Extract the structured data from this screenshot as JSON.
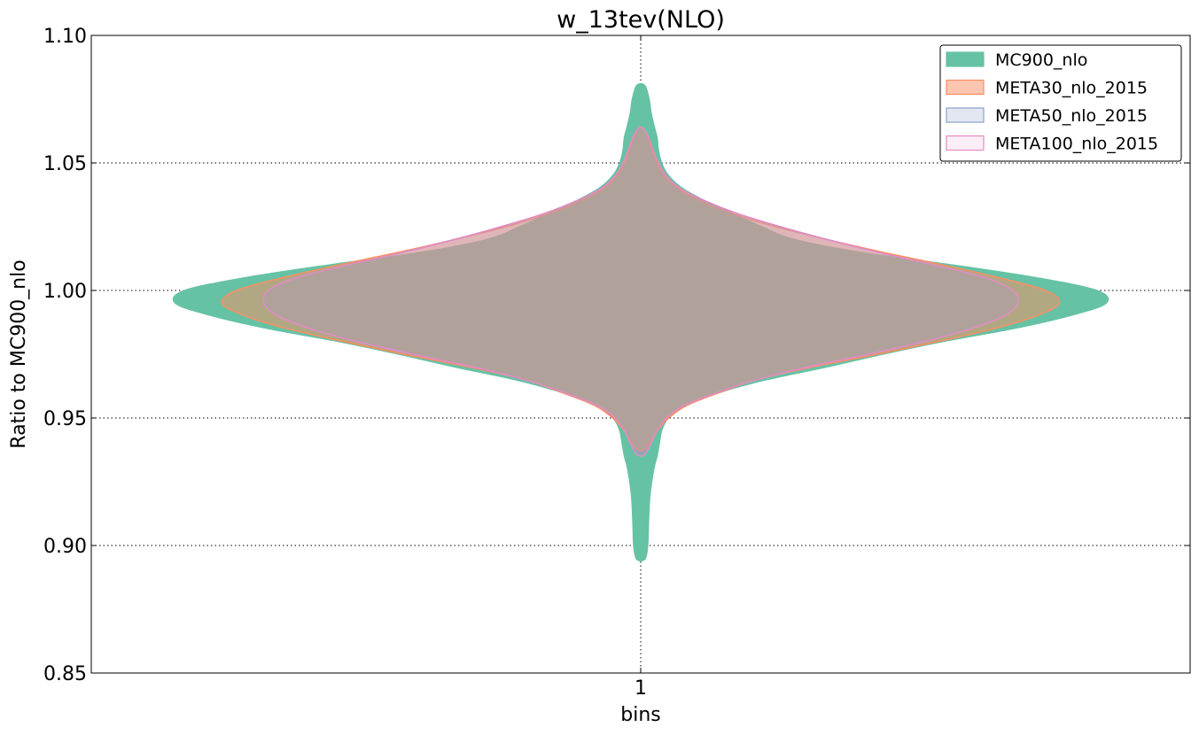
{
  "chart_data": {
    "type": "violin",
    "title": "w_13tev(NLO)",
    "xlabel": "bins",
    "ylabel": "Ratio to MC900_nlo",
    "categories": [
      "1"
    ],
    "ylim": [
      0.85,
      1.1
    ],
    "yticks": [
      "0.85",
      "0.90",
      "0.95",
      "1.00",
      "1.05",
      "1.10"
    ],
    "grid": true,
    "legend_position": "top-right",
    "series": [
      {
        "name": "MC900_nlo",
        "fill": "#66c2a5",
        "stroke": "#66c2a5",
        "fill_opacity": 1.0,
        "profile": [
          [
            0.895,
            0.01
          ],
          [
            0.9,
            0.015
          ],
          [
            0.91,
            0.017
          ],
          [
            0.92,
            0.02
          ],
          [
            0.93,
            0.028
          ],
          [
            0.935,
            0.035
          ],
          [
            0.94,
            0.04
          ],
          [
            0.945,
            0.045
          ],
          [
            0.95,
            0.06
          ],
          [
            0.955,
            0.1
          ],
          [
            0.96,
            0.17
          ],
          [
            0.965,
            0.27
          ],
          [
            0.97,
            0.4
          ],
          [
            0.975,
            0.52
          ],
          [
            0.98,
            0.65
          ],
          [
            0.985,
            0.8
          ],
          [
            0.99,
            0.92
          ],
          [
            0.995,
            1.0
          ],
          [
            1.0,
            0.98
          ],
          [
            1.005,
            0.85
          ],
          [
            1.01,
            0.67
          ],
          [
            1.015,
            0.47
          ],
          [
            1.02,
            0.33
          ],
          [
            1.025,
            0.26
          ],
          [
            1.03,
            0.2
          ],
          [
            1.035,
            0.14
          ],
          [
            1.04,
            0.09
          ],
          [
            1.045,
            0.06
          ],
          [
            1.05,
            0.045
          ],
          [
            1.055,
            0.038
          ],
          [
            1.06,
            0.035
          ],
          [
            1.065,
            0.028
          ],
          [
            1.07,
            0.022
          ],
          [
            1.075,
            0.018
          ],
          [
            1.08,
            0.01
          ]
        ]
      },
      {
        "name": "META30_nlo_2015",
        "fill": "#fc8d62",
        "stroke": "#fc8d62",
        "fill_opacity": 0.5,
        "profile": [
          [
            0.938,
            0.01
          ],
          [
            0.942,
            0.025
          ],
          [
            0.946,
            0.04
          ],
          [
            0.95,
            0.06
          ],
          [
            0.955,
            0.1
          ],
          [
            0.96,
            0.17
          ],
          [
            0.965,
            0.25
          ],
          [
            0.97,
            0.37
          ],
          [
            0.975,
            0.51
          ],
          [
            0.98,
            0.64
          ],
          [
            0.985,
            0.76
          ],
          [
            0.99,
            0.85
          ],
          [
            0.995,
            0.9
          ],
          [
            1.0,
            0.87
          ],
          [
            1.005,
            0.77
          ],
          [
            1.01,
            0.65
          ],
          [
            1.015,
            0.52
          ],
          [
            1.02,
            0.4
          ],
          [
            1.025,
            0.29
          ],
          [
            1.03,
            0.2
          ],
          [
            1.035,
            0.13
          ],
          [
            1.04,
            0.08
          ],
          [
            1.045,
            0.05
          ],
          [
            1.05,
            0.035
          ],
          [
            1.055,
            0.025
          ],
          [
            1.06,
            0.015
          ],
          [
            1.063,
            0.008
          ]
        ]
      },
      {
        "name": "META50_nlo_2015",
        "fill": "#8da0cb",
        "stroke": "#8da0cb",
        "fill_opacity": 0.25,
        "profile": [
          [
            0.937,
            0.01
          ],
          [
            0.94,
            0.022
          ],
          [
            0.945,
            0.035
          ],
          [
            0.95,
            0.055
          ],
          [
            0.955,
            0.095
          ],
          [
            0.96,
            0.165
          ],
          [
            0.965,
            0.25
          ],
          [
            0.97,
            0.36
          ],
          [
            0.975,
            0.49
          ],
          [
            0.98,
            0.61
          ],
          [
            0.985,
            0.71
          ],
          [
            0.99,
            0.78
          ],
          [
            0.995,
            0.81
          ],
          [
            1.0,
            0.8
          ],
          [
            1.005,
            0.74
          ],
          [
            1.01,
            0.63
          ],
          [
            1.015,
            0.51
          ],
          [
            1.02,
            0.4
          ],
          [
            1.025,
            0.3
          ],
          [
            1.03,
            0.21
          ],
          [
            1.035,
            0.14
          ],
          [
            1.04,
            0.085
          ],
          [
            1.045,
            0.055
          ],
          [
            1.05,
            0.038
          ],
          [
            1.055,
            0.027
          ],
          [
            1.06,
            0.017
          ],
          [
            1.063,
            0.008
          ]
        ]
      },
      {
        "name": "META100_nlo_2015",
        "fill": "#e78ac3",
        "stroke": "#e78ac3",
        "fill_opacity": 0.15,
        "profile": [
          [
            0.936,
            0.01
          ],
          [
            0.94,
            0.022
          ],
          [
            0.945,
            0.035
          ],
          [
            0.95,
            0.055
          ],
          [
            0.955,
            0.095
          ],
          [
            0.96,
            0.165
          ],
          [
            0.965,
            0.25
          ],
          [
            0.97,
            0.36
          ],
          [
            0.975,
            0.49
          ],
          [
            0.98,
            0.61
          ],
          [
            0.985,
            0.71
          ],
          [
            0.99,
            0.78
          ],
          [
            0.995,
            0.81
          ],
          [
            1.0,
            0.8
          ],
          [
            1.005,
            0.74
          ],
          [
            1.01,
            0.63
          ],
          [
            1.015,
            0.51
          ],
          [
            1.02,
            0.4
          ],
          [
            1.025,
            0.3
          ],
          [
            1.03,
            0.21
          ],
          [
            1.035,
            0.14
          ],
          [
            1.04,
            0.085
          ],
          [
            1.045,
            0.055
          ],
          [
            1.05,
            0.038
          ],
          [
            1.055,
            0.027
          ],
          [
            1.06,
            0.017
          ],
          [
            1.063,
            0.008
          ]
        ]
      }
    ]
  }
}
